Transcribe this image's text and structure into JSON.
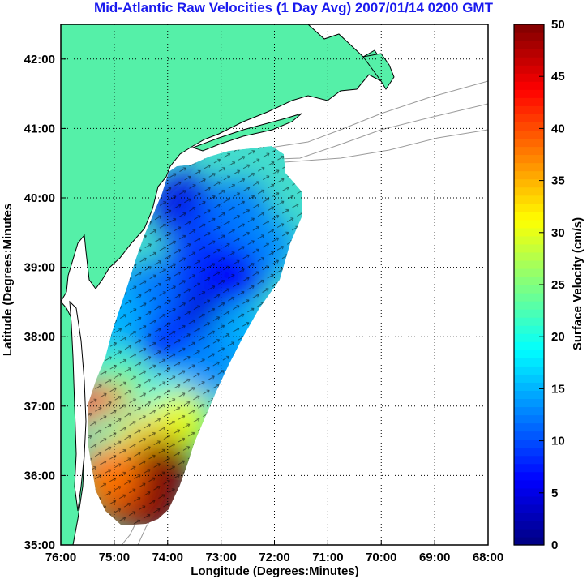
{
  "chart_data": {
    "type": "heatmap",
    "title": "Mid-Atlantic Raw Velocities (1 Day Avg) 2007/01/14 0200 GMT",
    "xlabel": "Longitude (Degrees:Minutes)",
    "ylabel": "Latitude (Degrees:Minutes",
    "colorbar_label": "Surface Velocity (cm/s)",
    "x_ticks": [
      "76:00",
      "75:00",
      "74:00",
      "73:00",
      "72:00",
      "71:00",
      "70:00",
      "69:00",
      "68:00"
    ],
    "y_ticks": [
      "35:00",
      "36:00",
      "37:00",
      "38:00",
      "39:00",
      "40:00",
      "41:00",
      "42:00"
    ],
    "colorbar_ticks": [
      "0",
      "5",
      "10",
      "15",
      "20",
      "25",
      "30",
      "35",
      "40",
      "45",
      "50"
    ],
    "xlim": [
      -76.0,
      -68.0
    ],
    "ylim": [
      35.0,
      42.5
    ],
    "clim": [
      0,
      50
    ],
    "colormap": "jet",
    "grid": "dotted",
    "colors": {
      "land": "#55f0a8",
      "title": "#1a1aee",
      "coast": "#000000",
      "bathymetry": "#9a9a9a"
    },
    "velocity_regions": [
      {
        "lon": -73.7,
        "lat": 39.9,
        "speed": 5
      },
      {
        "lon": -73.3,
        "lat": 39.5,
        "speed": 9
      },
      {
        "lon": -72.7,
        "lat": 39.8,
        "speed": 12
      },
      {
        "lon": -72.2,
        "lat": 39.3,
        "speed": 13
      },
      {
        "lon": -73.5,
        "lat": 38.9,
        "speed": 9
      },
      {
        "lon": -72.8,
        "lat": 38.9,
        "speed": 6
      },
      {
        "lon": -73.4,
        "lat": 38.2,
        "speed": 4
      },
      {
        "lon": -74.0,
        "lat": 38.0,
        "speed": 8
      },
      {
        "lon": -74.4,
        "lat": 38.6,
        "speed": 12
      },
      {
        "lon": -75.0,
        "lat": 38.3,
        "speed": 15
      },
      {
        "lon": -72.6,
        "lat": 38.0,
        "speed": 15
      },
      {
        "lon": -73.2,
        "lat": 37.6,
        "speed": 13
      },
      {
        "lon": -75.0,
        "lat": 37.3,
        "speed": 22
      },
      {
        "lon": -74.6,
        "lat": 37.0,
        "speed": 27
      },
      {
        "lon": -74.0,
        "lat": 37.0,
        "speed": 18
      },
      {
        "lon": -73.8,
        "lat": 36.8,
        "speed": 30
      },
      {
        "lon": -75.3,
        "lat": 36.9,
        "speed": 42
      },
      {
        "lon": -75.0,
        "lat": 36.5,
        "speed": 22
      },
      {
        "lon": -74.4,
        "lat": 36.4,
        "speed": 33
      },
      {
        "lon": -74.1,
        "lat": 36.1,
        "speed": 50
      },
      {
        "lon": -74.3,
        "lat": 35.6,
        "speed": 50
      },
      {
        "lon": -74.9,
        "lat": 35.7,
        "speed": 48
      },
      {
        "lon": -75.1,
        "lat": 36.0,
        "speed": 38
      }
    ]
  }
}
